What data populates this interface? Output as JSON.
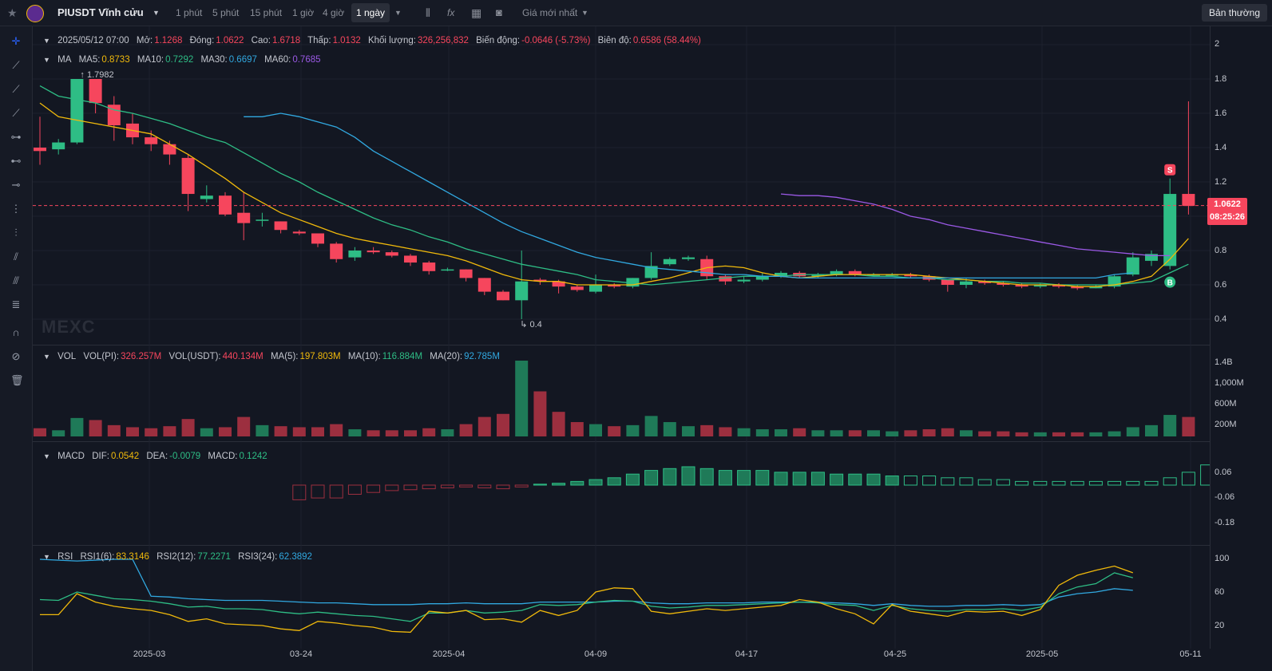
{
  "header": {
    "symbol": "PIUSDT Vĩnh cửu",
    "intervals": [
      "1 phút",
      "5 phút",
      "15 phút",
      "1 giờ",
      "4 giờ",
      "1 ngày"
    ],
    "active_interval": "1 ngày",
    "price_type": "Giá mới nhất",
    "mode_button": "Bản thường"
  },
  "ohlc": {
    "date": "2025/05/12 07:00",
    "open_label": "Mở:",
    "open": "1.1268",
    "close_label": "Đóng:",
    "close": "1.0622",
    "high_label": "Cao:",
    "high": "1.6718",
    "low_label": "Thấp:",
    "low": "1.0132",
    "vol_label": "Khối lượng:",
    "vol": "326,256,832",
    "chg_label": "Biến động:",
    "chg": "-0.0646 (-5.73%)",
    "amp_label": "Biên độ:",
    "amp": "0.6586 (58.44%)"
  },
  "ma_legend": {
    "name": "MA",
    "ma5_label": "MA5:",
    "ma5": "0.8733",
    "ma10_label": "MA10:",
    "ma10": "0.7292",
    "ma30_label": "MA30:",
    "ma30": "0.6697",
    "ma60_label": "MA60:",
    "ma60": "0.7685"
  },
  "vol_legend": {
    "name": "VOL",
    "pi_label": "VOL(PI):",
    "pi": "326.257M",
    "usdt_label": "VOL(USDT):",
    "usdt": "440.134M",
    "ma5_label": "MA(5):",
    "ma5": "197.803M",
    "ma10_label": "MA(10):",
    "ma10": "116.884M",
    "ma20_label": "MA(20):",
    "ma20": "92.785M"
  },
  "macd_legend": {
    "name": "MACD",
    "dif_label": "DIF:",
    "dif": "0.0542",
    "dea_label": "DEA:",
    "dea": "-0.0079",
    "macd_label": "MACD:",
    "macd": "0.1242"
  },
  "rsi_legend": {
    "name": "RSI",
    "r1_label": "RSI1(6):",
    "r1": "83.3146",
    "r2_label": "RSI2(12):",
    "r2": "77.2271",
    "r3_label": "RSI3(24):",
    "r3": "62.3892"
  },
  "price_axis": [
    "2",
    "1.8",
    "1.6",
    "1.4",
    "1.2",
    "1",
    "0.8",
    "0.6",
    "0.4"
  ],
  "vol_axis": [
    "1.4B",
    "1,000M",
    "600M",
    "200M"
  ],
  "macd_axis": [
    "0.06",
    "-0.06",
    "-0.18"
  ],
  "rsi_axis": [
    "100",
    "60",
    "20"
  ],
  "x_axis": [
    "2025-03",
    "03-24",
    "2025-04",
    "04-09",
    "04-17",
    "04-25",
    "2025-05",
    "05-11"
  ],
  "current_price": {
    "price": "1.0622",
    "countdown": "08:25:26"
  },
  "annotations": {
    "high": "1.7982",
    "low": "0.4",
    "sell": "S",
    "buy": "B"
  },
  "watermark": "MEXC",
  "colors": {
    "up": "#2ebd85",
    "down": "#f6465d",
    "ma5": "#f0b90b",
    "ma10": "#2ebd85",
    "ma30": "#31a8e0",
    "ma60": "#9b59e6",
    "bg": "#131722"
  },
  "chart_data": {
    "type": "candlestick",
    "series_candles": [
      [
        1.4,
        1.38,
        1.58,
        1.3
      ],
      [
        1.39,
        1.43,
        1.45,
        1.36
      ],
      [
        1.43,
        1.8,
        1.8,
        1.42
      ],
      [
        1.8,
        1.66,
        1.8,
        1.6
      ],
      [
        1.65,
        1.53,
        1.7,
        1.44
      ],
      [
        1.54,
        1.46,
        1.6,
        1.42
      ],
      [
        1.46,
        1.42,
        1.5,
        1.38
      ],
      [
        1.42,
        1.36,
        1.44,
        1.3
      ],
      [
        1.34,
        1.13,
        1.36,
        1.03
      ],
      [
        1.1,
        1.12,
        1.18,
        1.08
      ],
      [
        1.12,
        1.01,
        1.14,
        1.0
      ],
      [
        1.02,
        0.96,
        1.14,
        0.86
      ],
      [
        0.98,
        0.98,
        1.02,
        0.94
      ],
      [
        0.97,
        0.92,
        0.97,
        0.9
      ],
      [
        0.91,
        0.9,
        0.92,
        0.89
      ],
      [
        0.9,
        0.84,
        0.9,
        0.82
      ],
      [
        0.84,
        0.75,
        0.85,
        0.73
      ],
      [
        0.76,
        0.8,
        0.82,
        0.74
      ],
      [
        0.8,
        0.79,
        0.82,
        0.78
      ],
      [
        0.79,
        0.77,
        0.8,
        0.76
      ],
      [
        0.77,
        0.73,
        0.78,
        0.71
      ],
      [
        0.73,
        0.68,
        0.74,
        0.66
      ],
      [
        0.69,
        0.69,
        0.7,
        0.68
      ],
      [
        0.69,
        0.64,
        0.69,
        0.62
      ],
      [
        0.64,
        0.56,
        0.64,
        0.54
      ],
      [
        0.56,
        0.51,
        0.57,
        0.51
      ],
      [
        0.51,
        0.62,
        0.8,
        0.4
      ],
      [
        0.63,
        0.62,
        0.64,
        0.6
      ],
      [
        0.62,
        0.59,
        0.63,
        0.55
      ],
      [
        0.59,
        0.57,
        0.6,
        0.56
      ],
      [
        0.56,
        0.6,
        0.66,
        0.55
      ],
      [
        0.6,
        0.59,
        0.61,
        0.58
      ],
      [
        0.59,
        0.64,
        0.64,
        0.58
      ],
      [
        0.64,
        0.71,
        0.79,
        0.63
      ],
      [
        0.72,
        0.75,
        0.76,
        0.71
      ],
      [
        0.75,
        0.76,
        0.77,
        0.74
      ],
      [
        0.75,
        0.65,
        0.77,
        0.63
      ],
      [
        0.65,
        0.62,
        0.66,
        0.6
      ],
      [
        0.62,
        0.63,
        0.65,
        0.61
      ],
      [
        0.63,
        0.65,
        0.67,
        0.62
      ],
      [
        0.65,
        0.67,
        0.68,
        0.64
      ],
      [
        0.67,
        0.65,
        0.68,
        0.64
      ],
      [
        0.65,
        0.66,
        0.67,
        0.64
      ],
      [
        0.66,
        0.68,
        0.69,
        0.65
      ],
      [
        0.68,
        0.66,
        0.69,
        0.65
      ],
      [
        0.66,
        0.66,
        0.67,
        0.65
      ],
      [
        0.66,
        0.66,
        0.67,
        0.65
      ],
      [
        0.66,
        0.65,
        0.67,
        0.64
      ],
      [
        0.65,
        0.63,
        0.66,
        0.62
      ],
      [
        0.63,
        0.6,
        0.63,
        0.56
      ],
      [
        0.6,
        0.62,
        0.64,
        0.58
      ],
      [
        0.62,
        0.61,
        0.63,
        0.6
      ],
      [
        0.61,
        0.6,
        0.62,
        0.59
      ],
      [
        0.6,
        0.59,
        0.61,
        0.58
      ],
      [
        0.59,
        0.6,
        0.61,
        0.58
      ],
      [
        0.6,
        0.59,
        0.61,
        0.58
      ],
      [
        0.59,
        0.58,
        0.6,
        0.57
      ],
      [
        0.58,
        0.59,
        0.6,
        0.58
      ],
      [
        0.59,
        0.65,
        0.66,
        0.58
      ],
      [
        0.66,
        0.76,
        0.79,
        0.65
      ],
      [
        0.74,
        0.78,
        0.8,
        0.71
      ],
      [
        0.71,
        1.13,
        1.22,
        0.69
      ],
      [
        1.13,
        1.06,
        1.67,
        1.01
      ]
    ],
    "volume": [
      40,
      30,
      90,
      80,
      55,
      45,
      40,
      50,
      85,
      40,
      45,
      95,
      55,
      50,
      45,
      45,
      60,
      35,
      30,
      30,
      30,
      40,
      35,
      60,
      95,
      110,
      370,
      220,
      120,
      70,
      60,
      50,
      55,
      100,
      70,
      50,
      55,
      45,
      40,
      35,
      35,
      40,
      30,
      30,
      30,
      30,
      25,
      30,
      35,
      40,
      30,
      25,
      25,
      20,
      20,
      20,
      20,
      20,
      25,
      45,
      55,
      105,
      95
    ],
    "ma_lines": {
      "MA5": [
        1.66,
        1.58,
        1.56,
        1.54,
        1.52,
        1.5,
        1.48,
        1.42,
        1.36,
        1.29,
        1.22,
        1.14,
        1.08,
        1.02,
        0.98,
        0.94,
        0.9,
        0.87,
        0.85,
        0.83,
        0.81,
        0.79,
        0.77,
        0.74,
        0.7,
        0.66,
        0.63,
        0.62,
        0.62,
        0.6,
        0.6,
        0.6,
        0.6,
        0.62,
        0.64,
        0.67,
        0.7,
        0.71,
        0.7,
        0.67,
        0.65,
        0.64,
        0.65,
        0.66,
        0.66,
        0.66,
        0.66,
        0.66,
        0.65,
        0.64,
        0.63,
        0.62,
        0.61,
        0.6,
        0.6,
        0.6,
        0.59,
        0.59,
        0.6,
        0.62,
        0.65,
        0.75,
        0.87
      ],
      "MA10": [
        1.76,
        1.7,
        1.68,
        1.66,
        1.62,
        1.6,
        1.57,
        1.54,
        1.5,
        1.46,
        1.43,
        1.37,
        1.31,
        1.25,
        1.2,
        1.14,
        1.09,
        1.04,
        0.99,
        0.95,
        0.92,
        0.88,
        0.85,
        0.81,
        0.78,
        0.75,
        0.72,
        0.7,
        0.68,
        0.66,
        0.63,
        0.62,
        0.61,
        0.6,
        0.61,
        0.62,
        0.63,
        0.64,
        0.65,
        0.65,
        0.65,
        0.66,
        0.66,
        0.66,
        0.66,
        0.65,
        0.65,
        0.64,
        0.64,
        0.63,
        0.63,
        0.62,
        0.62,
        0.61,
        0.61,
        0.6,
        0.6,
        0.6,
        0.6,
        0.61,
        0.62,
        0.67,
        0.72
      ]
    },
    "ma30": {
      "from": 11,
      "values": [
        1.58,
        1.58,
        1.6,
        1.58,
        1.55,
        1.52,
        1.46,
        1.38,
        1.32,
        1.26,
        1.2,
        1.14,
        1.08,
        1.02,
        0.96,
        0.91,
        0.87,
        0.83,
        0.79,
        0.76,
        0.74,
        0.72,
        0.7,
        0.69,
        0.68,
        0.67,
        0.66,
        0.66,
        0.65,
        0.65,
        0.64,
        0.64,
        0.64,
        0.64,
        0.64,
        0.64,
        0.64,
        0.64,
        0.64,
        0.64,
        0.64,
        0.64,
        0.64,
        0.64,
        0.64,
        0.64,
        0.64,
        0.66,
        0.67
      ]
    },
    "ma60": {
      "from": 40,
      "values": [
        1.13,
        1.12,
        1.12,
        1.11,
        1.09,
        1.07,
        1.04,
        1.0,
        0.98,
        0.95,
        0.93,
        0.91,
        0.89,
        0.87,
        0.85,
        0.83,
        0.81,
        0.8,
        0.79,
        0.78,
        0.77,
        0.77
      ]
    },
    "macd_hist": [
      -0.08,
      -0.07,
      -0.07,
      -0.05,
      -0.04,
      -0.03,
      -0.025,
      -0.02,
      -0.015,
      -0.01,
      -0.015,
      -0.02,
      -0.01,
      0.005,
      0.01,
      0.02,
      0.03,
      0.04,
      0.06,
      0.08,
      0.09,
      0.1,
      0.09,
      0.08,
      0.08,
      0.08,
      0.07,
      0.07,
      0.07,
      0.06,
      0.06,
      0.06,
      0.05,
      0.05,
      0.05,
      0.04,
      0.04,
      0.03,
      0.03,
      0.02,
      0.02,
      0.02,
      0.02,
      0.02,
      0.02,
      0.02,
      0.02,
      0.04,
      0.07,
      0.11,
      0.13
    ],
    "macd_hist_from": 14,
    "rsi_lines": {
      "RSI1": [
        33,
        33,
        58,
        48,
        43,
        40,
        38,
        33,
        25,
        28,
        22,
        21,
        20,
        16,
        14,
        25,
        23,
        20,
        18,
        13,
        12,
        37,
        35,
        38,
        27,
        28,
        24,
        38,
        32,
        38,
        60,
        65,
        64,
        37,
        34,
        37,
        40,
        38,
        40,
        42,
        44,
        51,
        48,
        40,
        34,
        22,
        45,
        37,
        34,
        31,
        37,
        36,
        37,
        32,
        39,
        68,
        80,
        86,
        91,
        83
      ],
      "RSI2": [
        51,
        50,
        60,
        56,
        52,
        51,
        49,
        46,
        42,
        43,
        40,
        40,
        39,
        36,
        34,
        36,
        34,
        32,
        31,
        28,
        25,
        35,
        35,
        38,
        35,
        36,
        38,
        45,
        44,
        45,
        48,
        50,
        49,
        43,
        41,
        42,
        44,
        44,
        45,
        46,
        47,
        48,
        47,
        45,
        44,
        38,
        44,
        40,
        38,
        37,
        39,
        39,
        40,
        38,
        42,
        58,
        66,
        70,
        83,
        77
      ],
      "RSI3": [
        99,
        98,
        97,
        98,
        99,
        99,
        55,
        54,
        52,
        51,
        50,
        50,
        50,
        49,
        48,
        47,
        47,
        46,
        45,
        45,
        45,
        46,
        46,
        47,
        46,
        46,
        46,
        48,
        48,
        48,
        48,
        49,
        49,
        47,
        46,
        46,
        47,
        47,
        47,
        48,
        48,
        48,
        48,
        47,
        46,
        44,
        46,
        44,
        43,
        43,
        44,
        44,
        45,
        44,
        45,
        54,
        58,
        60,
        64,
        62
      ]
    }
  }
}
